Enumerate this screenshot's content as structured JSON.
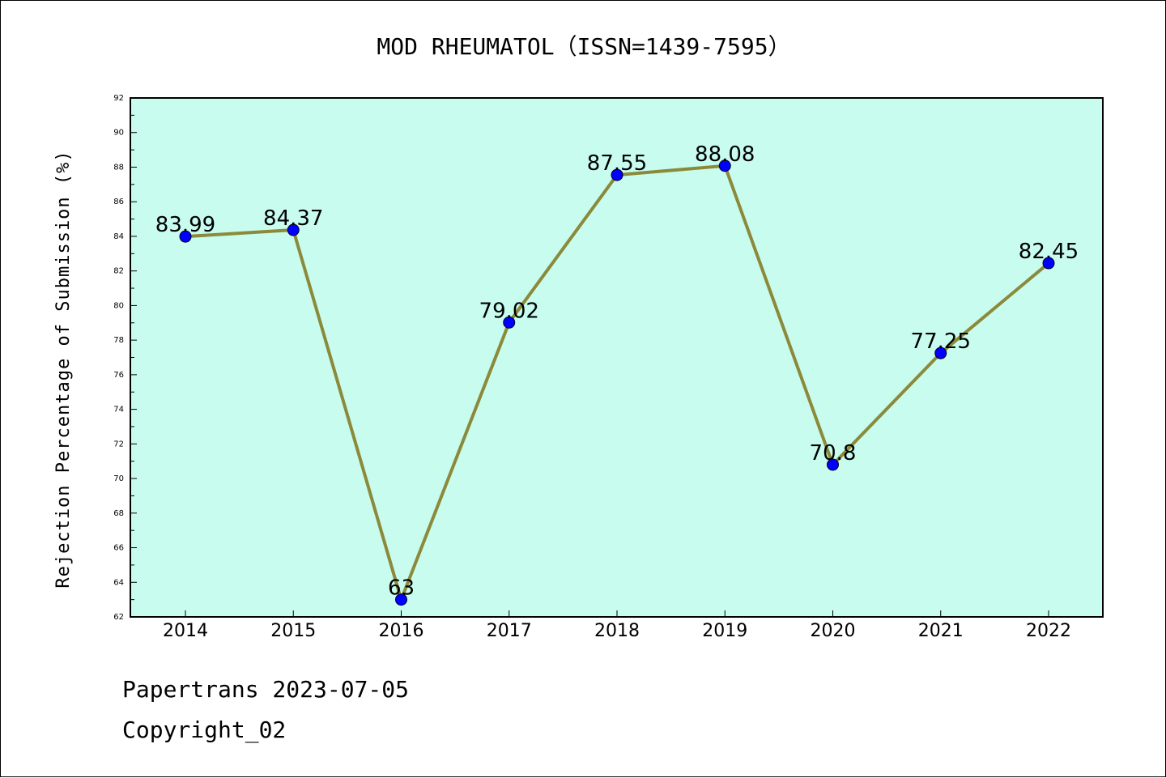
{
  "footer": {
    "line1": "Papertrans 2023-07-05",
    "line2": "Copyright_02"
  },
  "colors": {
    "plot_background": "#c8fcee",
    "line": "#8b8a3a",
    "marker": "#0000ff",
    "page_background": "#ffffff"
  },
  "chart_data": {
    "type": "line",
    "title": "MOD RHEUMATOL（ISSN=1439-7595）",
    "xlabel": "",
    "ylabel": "Rejection Percentage of Submission (%)",
    "categories": [
      "2014",
      "2015",
      "2016",
      "2017",
      "2018",
      "2019",
      "2020",
      "2021",
      "2022"
    ],
    "series": [
      {
        "values": [
          83.99,
          84.37,
          63,
          79.02,
          87.55,
          88.08,
          70.8,
          77.25,
          82.45
        ],
        "labels": [
          "83.99",
          "84.37",
          "63",
          "79.02",
          "87.55",
          "88.08",
          "70.8",
          "77.25",
          "82.45"
        ]
      }
    ],
    "ylim": [
      62,
      92
    ],
    "yticks": [
      "62",
      "64",
      "66",
      "68",
      "70",
      "72",
      "74",
      "76",
      "78",
      "80",
      "82",
      "84",
      "86",
      "88",
      "90",
      "92"
    ],
    "grid": false,
    "legend": "none"
  }
}
